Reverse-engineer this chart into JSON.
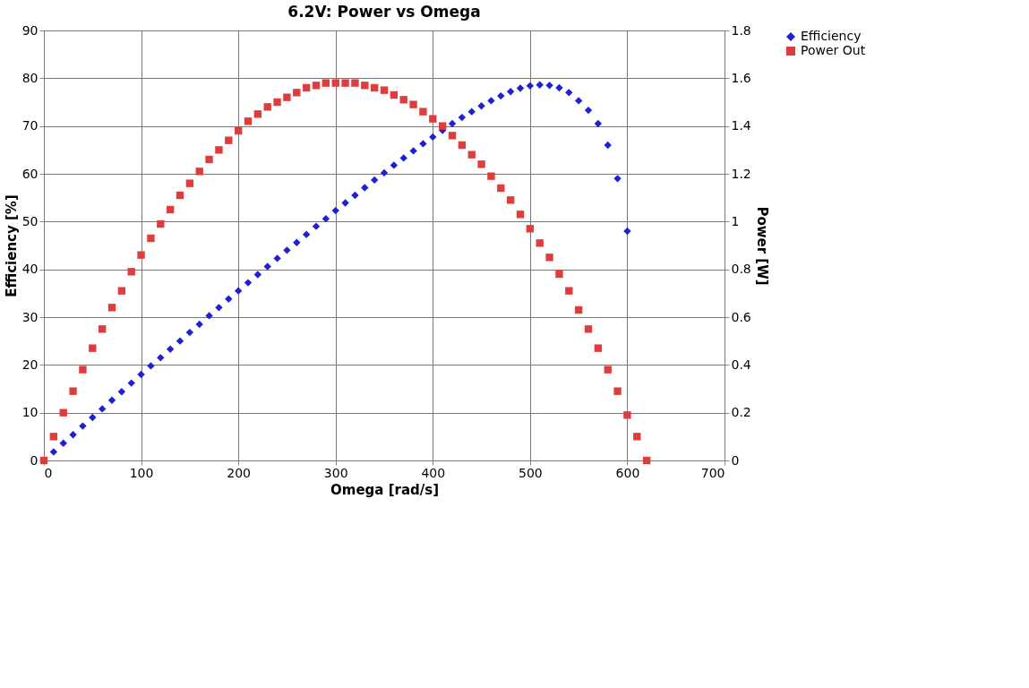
{
  "chart_data": {
    "type": "scatter",
    "title": "6.2V: Power vs Omega",
    "xlabel": "Omega [rad/s]",
    "ylabel": "Efficiency [%]",
    "y2label": "Power [W]",
    "xlim": [
      0,
      700
    ],
    "xticks": [
      0,
      100,
      200,
      300,
      400,
      500,
      600,
      700
    ],
    "ylim": [
      0,
      90
    ],
    "yticks": [
      0,
      10,
      20,
      30,
      40,
      50,
      60,
      70,
      80,
      90
    ],
    "y2lim": [
      0,
      1.8
    ],
    "y2ticks": [
      0,
      0.2,
      0.4,
      0.6,
      0.8,
      1,
      1.2,
      1.4,
      1.6,
      1.8
    ],
    "grid": true,
    "legend": "right",
    "series": [
      {
        "name": "Efficiency",
        "color": "#1f1fd6",
        "marker": "diamond",
        "x": [
          10,
          20,
          30,
          40,
          50,
          60,
          70,
          80,
          90,
          100,
          110,
          120,
          130,
          140,
          150,
          160,
          170,
          180,
          190,
          200,
          210,
          220,
          230,
          240,
          250,
          260,
          270,
          280,
          290,
          300,
          310,
          320,
          330,
          340,
          350,
          360,
          370,
          380,
          390,
          400,
          410,
          420,
          430,
          440,
          450,
          460,
          470,
          480,
          490,
          500,
          510,
          520,
          530,
          540,
          550,
          560,
          570,
          580,
          590,
          600
        ],
        "values": [
          1.8,
          3.6,
          5.4,
          7.2,
          9.0,
          10.8,
          12.6,
          14.4,
          16.2,
          18.0,
          19.8,
          21.5,
          23.3,
          25.0,
          26.8,
          28.5,
          30.3,
          32.0,
          33.8,
          35.5,
          37.2,
          38.9,
          40.6,
          42.3,
          44.0,
          45.6,
          47.3,
          49.0,
          50.6,
          52.3,
          53.9,
          55.5,
          57.1,
          58.7,
          60.2,
          61.8,
          63.3,
          64.8,
          66.3,
          67.7,
          69.1,
          70.5,
          71.8,
          73.0,
          74.2,
          75.3,
          76.3,
          77.2,
          77.9,
          78.4,
          78.6,
          78.5,
          78.0,
          77.0,
          75.3,
          73.3,
          70.5,
          66.0,
          59.0,
          48.0
        ]
      },
      {
        "name": "Power Out",
        "color": "#e03c3c",
        "marker": "square",
        "axis": "y2",
        "x": [
          0,
          10,
          20,
          30,
          40,
          50,
          60,
          70,
          80,
          90,
          100,
          110,
          120,
          130,
          140,
          150,
          160,
          170,
          180,
          190,
          200,
          210,
          220,
          230,
          240,
          250,
          260,
          270,
          280,
          290,
          300,
          310,
          320,
          330,
          340,
          350,
          360,
          370,
          380,
          390,
          400,
          410,
          420,
          430,
          440,
          450,
          460,
          470,
          480,
          490,
          500,
          510,
          520,
          530,
          540,
          550,
          560,
          570,
          580,
          590,
          600,
          610,
          620
        ],
        "values": [
          0,
          0.1,
          0.2,
          0.29,
          0.38,
          0.47,
          0.55,
          0.64,
          0.71,
          0.79,
          0.86,
          0.93,
          0.99,
          1.05,
          1.11,
          1.16,
          1.21,
          1.26,
          1.3,
          1.34,
          1.38,
          1.42,
          1.45,
          1.48,
          1.5,
          1.52,
          1.54,
          1.56,
          1.57,
          1.58,
          1.58,
          1.58,
          1.58,
          1.57,
          1.56,
          1.55,
          1.53,
          1.51,
          1.49,
          1.46,
          1.43,
          1.4,
          1.36,
          1.32,
          1.28,
          1.24,
          1.19,
          1.14,
          1.09,
          1.03,
          0.97,
          0.91,
          0.85,
          0.78,
          0.71,
          0.63,
          0.55,
          0.47,
          0.38,
          0.29,
          0.19,
          0.1,
          0
        ]
      }
    ]
  }
}
